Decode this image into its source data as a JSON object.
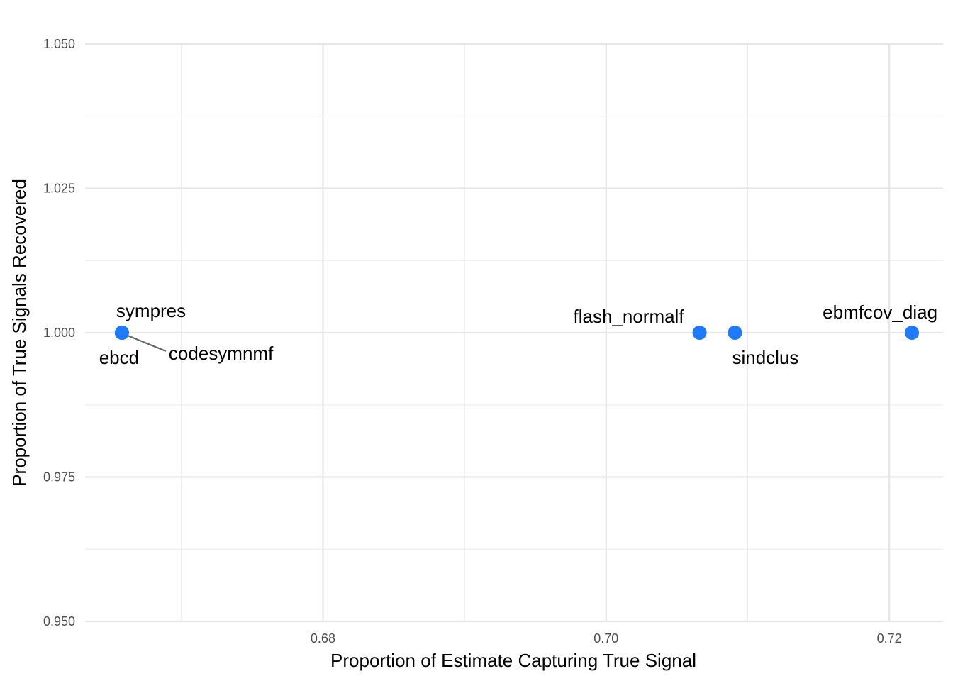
{
  "chart_data": {
    "type": "scatter",
    "title": "",
    "xlabel": "Proportion of Estimate Capturing True Signal",
    "ylabel": "Proportion of True Signals Recovered",
    "xlim": [
      0.6632,
      0.7238
    ],
    "ylim": [
      0.95,
      1.05
    ],
    "x_ticks": [
      0.68,
      0.7,
      0.72
    ],
    "x_tick_labels": [
      "0.68",
      "0.70",
      "0.72"
    ],
    "y_ticks": [
      0.95,
      0.975,
      1.0,
      1.025,
      1.05
    ],
    "y_tick_labels": [
      "0.950",
      "0.975",
      "1.000",
      "1.025",
      "1.050"
    ],
    "grid": true,
    "legend": "none",
    "point_color": "#1e7bff",
    "points": [
      {
        "label": "sympres",
        "x": 0.6658,
        "y": 1.0
      },
      {
        "label": "ebcd",
        "x": 0.6658,
        "y": 1.0
      },
      {
        "label": "codesymnmf",
        "x": 0.6658,
        "y": 1.0
      },
      {
        "label": "flash_normalf",
        "x": 0.7066,
        "y": 1.0
      },
      {
        "label": "sindclus",
        "x": 0.7091,
        "y": 1.0
      },
      {
        "label": "ebmfcov_diag",
        "x": 0.7216,
        "y": 1.0
      }
    ]
  }
}
